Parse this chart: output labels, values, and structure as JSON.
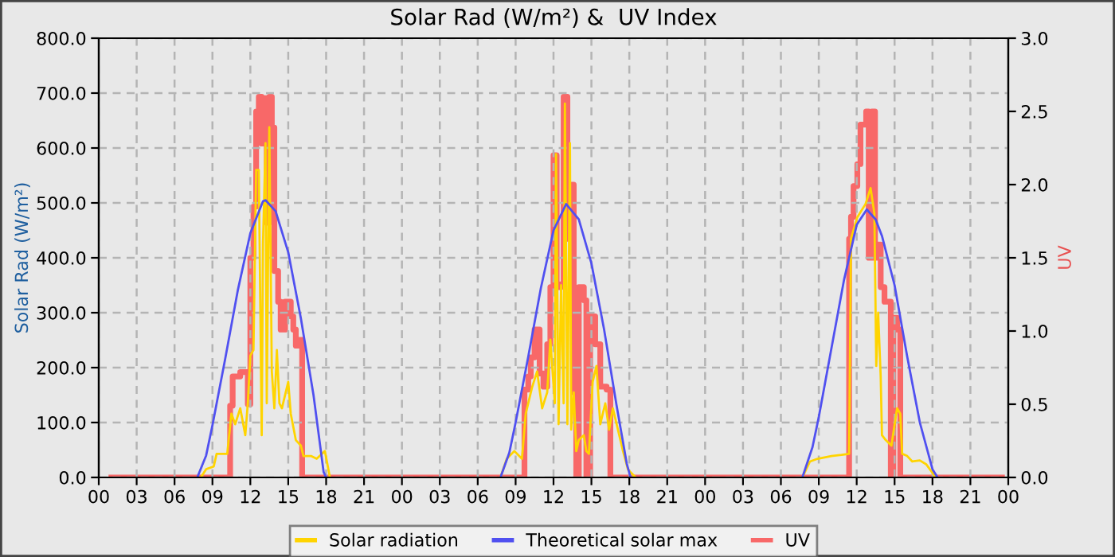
{
  "chart_data": {
    "type": "line",
    "title": "Solar Rad (W/m²) &  UV Index",
    "ylabel": "Solar Rad (W/m²)",
    "y2label": "UV",
    "xlim": [
      0,
      72
    ],
    "xticks": [
      {
        "value": 0,
        "label": "00"
      },
      {
        "value": 3,
        "label": "03"
      },
      {
        "value": 6,
        "label": "06"
      },
      {
        "value": 9,
        "label": "09"
      },
      {
        "value": 12,
        "label": "12"
      },
      {
        "value": 15,
        "label": "15"
      },
      {
        "value": 18,
        "label": "18"
      },
      {
        "value": 21,
        "label": "21"
      },
      {
        "value": 24,
        "label": "00"
      },
      {
        "value": 27,
        "label": "03"
      },
      {
        "value": 30,
        "label": "06"
      },
      {
        "value": 33,
        "label": "09"
      },
      {
        "value": 36,
        "label": "12"
      },
      {
        "value": 39,
        "label": "15"
      },
      {
        "value": 42,
        "label": "18"
      },
      {
        "value": 45,
        "label": "21"
      },
      {
        "value": 48,
        "label": "00"
      },
      {
        "value": 51,
        "label": "03"
      },
      {
        "value": 54,
        "label": "06"
      },
      {
        "value": 57,
        "label": "09"
      },
      {
        "value": 60,
        "label": "12"
      },
      {
        "value": 63,
        "label": "15"
      },
      {
        "value": 66,
        "label": "18"
      },
      {
        "value": 69,
        "label": "21"
      },
      {
        "value": 72,
        "label": "00"
      }
    ],
    "ylim": [
      0,
      800
    ],
    "yticks": [
      {
        "value": 0,
        "label": "0.0"
      },
      {
        "value": 100,
        "label": "100.0"
      },
      {
        "value": 200,
        "label": "200.0"
      },
      {
        "value": 300,
        "label": "300.0"
      },
      {
        "value": 400,
        "label": "400.0"
      },
      {
        "value": 500,
        "label": "500.0"
      },
      {
        "value": 600,
        "label": "600.0"
      },
      {
        "value": 700,
        "label": "700.0"
      },
      {
        "value": 800,
        "label": "800.0"
      }
    ],
    "y2lim": [
      0,
      3
    ],
    "y2ticks": [
      {
        "value": 0,
        "label": "0.0"
      },
      {
        "value": 0.5,
        "label": "0.5"
      },
      {
        "value": 1,
        "label": "1.0"
      },
      {
        "value": 1.5,
        "label": "1.5"
      },
      {
        "value": 2,
        "label": "2.0"
      },
      {
        "value": 2.5,
        "label": "2.5"
      },
      {
        "value": 3,
        "label": "3.0"
      }
    ],
    "grid": true,
    "legend": "bottom",
    "series": [
      {
        "name": "UV",
        "type": "step",
        "axis": "y2",
        "color": "#f86868",
        "x": [
          1.0,
          10.4,
          10.6,
          11.2,
          11.8,
          12.0,
          12.25,
          12.46,
          12.67,
          12.9,
          13.1,
          13.3,
          13.5,
          13.7,
          13.9,
          14.2,
          14.4,
          14.75,
          15.2,
          15.4,
          15.6,
          15.8,
          16.1,
          33.7,
          34.0,
          34.2,
          34.5,
          34.9,
          35.2,
          35.5,
          35.75,
          36.0,
          36.25,
          36.6,
          36.8,
          37.1,
          37.4,
          37.6,
          37.8,
          38.0,
          38.4,
          38.6,
          38.9,
          39.3,
          39.7,
          40.2,
          40.5,
          59.4,
          59.55,
          59.75,
          60.05,
          60.3,
          60.75,
          60.95,
          61.2,
          61.45,
          61.7,
          61.9,
          62.2,
          62.7,
          62.9,
          63.2,
          63.45,
          71.5
        ],
        "values": [
          0,
          0.49,
          0.69,
          0.72,
          0.5,
          1.5,
          1.85,
          2.5,
          2.6,
          2.28,
          2.59,
          1.74,
          2.6,
          2.39,
          1.41,
          1.2,
          1.01,
          1.2,
          1.1,
          1.01,
          0.9,
          0.94,
          0,
          0.6,
          0.69,
          0.82,
          1.01,
          0.71,
          0.62,
          0.91,
          1.3,
          2.2,
          1.3,
          1.32,
          2.6,
          1.63,
          2.0,
          0.58,
          0,
          1.3,
          1.21,
          0,
          1.1,
          0.91,
          0.62,
          0.6,
          0,
          1.63,
          1.78,
          1.99,
          2.14,
          2.41,
          2.5,
          1.5,
          2.5,
          1.5,
          1.59,
          1.3,
          1.2,
          0,
          1.09,
          1.01,
          0,
          0
        ]
      },
      {
        "name": "Solar radiation",
        "color": "#ffd400",
        "x": [
          8.08,
          8.5,
          9.1,
          9.33,
          10.17,
          10.5,
          10.8,
          11.2,
          11.6,
          11.8,
          12.0,
          12.25,
          12.46,
          12.67,
          12.9,
          13.0,
          13.2,
          13.3,
          13.5,
          13.7,
          13.9,
          14.1,
          14.3,
          14.5,
          15.0,
          15.2,
          15.6,
          16.0,
          16.2,
          16.8,
          17.25,
          17.9,
          18.3,
          25,
          31.8,
          32.3,
          32.9,
          33.5,
          33.8,
          34.3,
          34.7,
          35.1,
          35.5,
          35.75,
          36.1,
          36.2,
          36.4,
          36.6,
          36.8,
          36.9,
          37.1,
          37.3,
          37.4,
          37.6,
          37.8,
          38.0,
          38.4,
          38.6,
          38.8,
          39.1,
          39.4,
          39.7,
          40.1,
          40.4,
          40.7,
          41.1,
          41.5,
          41.9,
          42.5,
          50,
          55.7,
          56.3,
          56.9,
          58.0,
          58.8,
          59.4,
          59.55,
          60.05,
          60.7,
          61.1,
          61.4,
          61.55,
          61.7,
          61.9,
          62.0,
          62.3,
          62.75,
          63.2,
          63.45,
          63.6,
          64.0,
          64.4,
          65.0,
          65.5,
          66.1,
          66.3
        ],
        "values": [
          0,
          15,
          20,
          43,
          43,
          116,
          97,
          126,
          77,
          135,
          222,
          232,
          560,
          560,
          77,
          425,
          609,
          135,
          638,
          193,
          126,
          232,
          135,
          126,
          174,
          116,
          68,
          58,
          39,
          39,
          34,
          48,
          0,
          null,
          0,
          34,
          48,
          34,
          116,
          164,
          193,
          126,
          155,
          251,
          135,
          589,
          97,
          350,
          135,
          681,
          97,
          609,
          87,
          155,
          48,
          68,
          77,
          48,
          43,
          174,
          203,
          97,
          135,
          87,
          126,
          87,
          48,
          14,
          0,
          null,
          0,
          29,
          34,
          39,
          41,
          43,
          435,
          474,
          498,
          527,
          481,
          203,
          300,
          184,
          77,
          68,
          58,
          126,
          116,
          43,
          39,
          29,
          31,
          24,
          5,
          0
        ]
      },
      {
        "name": "Theoretical solar max",
        "color": "#5050f0",
        "x": [
          7.8,
          8.5,
          9,
          10,
          11,
          12,
          13,
          13.2,
          14,
          15,
          16,
          17,
          17.8,
          18,
          25,
          31.8,
          32.5,
          33,
          34,
          35,
          36,
          37,
          38,
          39,
          40,
          41,
          41.8,
          42.1,
          50,
          55.7,
          56.5,
          57,
          58,
          59,
          60,
          60.8,
          61.5,
          62,
          63,
          64,
          65,
          66,
          66.4
        ],
        "values": [
          0,
          40,
          95,
          215,
          340,
          445,
          503,
          505,
          485,
          410,
          290,
          150,
          10,
          0,
          null,
          0,
          45,
          100,
          220,
          345,
          450,
          498,
          470,
          390,
          270,
          130,
          25,
          0,
          null,
          0,
          55,
          110,
          235,
          360,
          460,
          488,
          470,
          440,
          350,
          220,
          100,
          15,
          0
        ]
      }
    ]
  }
}
